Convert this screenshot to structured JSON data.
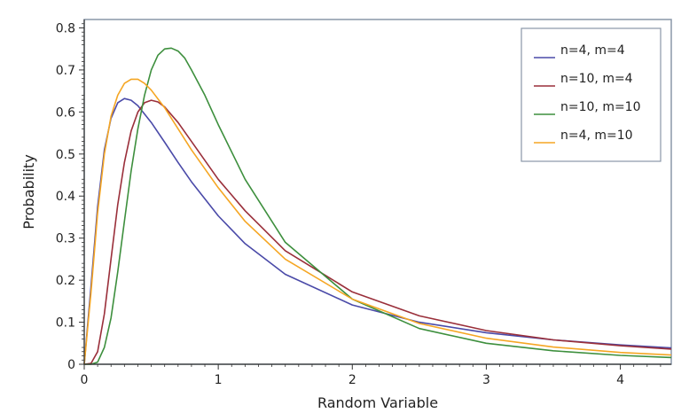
{
  "chart_data": {
    "type": "line",
    "title": "",
    "xlabel": "Random Variable",
    "ylabel": "Probability",
    "xlim": [
      0,
      4.38
    ],
    "ylim": [
      0,
      0.82
    ],
    "x_ticks": [
      "0",
      "1",
      "2",
      "3",
      "4"
    ],
    "y_ticks": [
      "0",
      "0.1",
      "0.2",
      "0.3",
      "0.4",
      "0.5",
      "0.6",
      "0.7",
      "0.8"
    ],
    "grid": false,
    "legend_position": "top-right",
    "series": [
      {
        "name": "n=4, m=4",
        "color": "#4a4aa8",
        "x": [
          0.05,
          0.1,
          0.15,
          0.2,
          0.25,
          0.3,
          0.35,
          0.4,
          0.5,
          0.6,
          0.7,
          0.8,
          1.0,
          1.2,
          1.5,
          2.0,
          2.5,
          3.0,
          3.5,
          4.0,
          4.38
        ],
        "y": [
          0.185,
          0.375,
          0.51,
          0.585,
          0.622,
          0.632,
          0.628,
          0.615,
          0.575,
          0.528,
          0.48,
          0.434,
          0.353,
          0.287,
          0.214,
          0.141,
          0.1,
          0.075,
          0.058,
          0.046,
          0.039
        ]
      },
      {
        "name": "n=10, m=4",
        "color": "#9a2f3a",
        "x": [
          0.05,
          0.1,
          0.15,
          0.2,
          0.25,
          0.3,
          0.35,
          0.4,
          0.45,
          0.5,
          0.55,
          0.6,
          0.7,
          0.8,
          1.0,
          1.2,
          1.5,
          2.0,
          2.5,
          3.0,
          3.5,
          4.0,
          4.38
        ],
        "y": [
          0.002,
          0.03,
          0.12,
          0.25,
          0.38,
          0.48,
          0.555,
          0.6,
          0.622,
          0.628,
          0.624,
          0.612,
          0.575,
          0.53,
          0.44,
          0.365,
          0.27,
          0.172,
          0.115,
          0.08,
          0.058,
          0.044,
          0.036
        ]
      },
      {
        "name": "n=10, m=10",
        "color": "#3d8f3d",
        "x": [
          0.05,
          0.1,
          0.15,
          0.2,
          0.25,
          0.3,
          0.35,
          0.4,
          0.45,
          0.5,
          0.55,
          0.6,
          0.65,
          0.7,
          0.75,
          0.8,
          0.9,
          1.0,
          1.2,
          1.5,
          2.0,
          2.5,
          3.0,
          3.5,
          4.0,
          4.38
        ],
        "y": [
          0.0,
          0.005,
          0.04,
          0.11,
          0.22,
          0.34,
          0.46,
          0.56,
          0.64,
          0.7,
          0.735,
          0.75,
          0.752,
          0.745,
          0.728,
          0.7,
          0.64,
          0.57,
          0.44,
          0.29,
          0.155,
          0.085,
          0.05,
          0.032,
          0.021,
          0.016
        ]
      },
      {
        "name": "n=4, m=10",
        "color": "#f5a623",
        "x": [
          0.05,
          0.1,
          0.15,
          0.2,
          0.25,
          0.3,
          0.35,
          0.4,
          0.45,
          0.5,
          0.6,
          0.7,
          0.8,
          1.0,
          1.2,
          1.5,
          2.0,
          2.5,
          3.0,
          3.5,
          4.0,
          4.38
        ],
        "y": [
          0.17,
          0.36,
          0.5,
          0.59,
          0.64,
          0.668,
          0.678,
          0.678,
          0.668,
          0.652,
          0.61,
          0.56,
          0.51,
          0.42,
          0.34,
          0.25,
          0.155,
          0.097,
          0.062,
          0.041,
          0.028,
          0.022
        ]
      }
    ]
  }
}
